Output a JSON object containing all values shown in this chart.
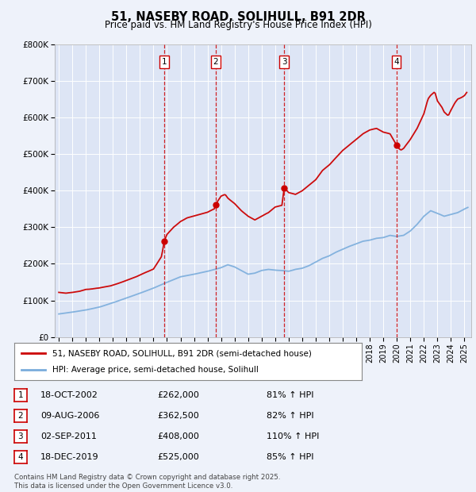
{
  "title": "51, NASEBY ROAD, SOLIHULL, B91 2DR",
  "subtitle": "Price paid vs. HM Land Registry's House Price Index (HPI)",
  "background_color": "#eef2fa",
  "plot_bg_color": "#dde5f5",
  "grid_color": "#ffffff",
  "red_line_color": "#cc0000",
  "blue_line_color": "#7aaddc",
  "ylim": [
    0,
    800000
  ],
  "yticks": [
    0,
    100000,
    200000,
    300000,
    400000,
    500000,
    600000,
    700000,
    800000
  ],
  "ytick_labels": [
    "£0",
    "£100K",
    "£200K",
    "£300K",
    "£400K",
    "£500K",
    "£600K",
    "£700K",
    "£800K"
  ],
  "xlim_start": 1994.7,
  "xlim_end": 2025.5,
  "transactions": [
    {
      "num": 1,
      "year": 2002.8,
      "price": 262000,
      "label": "18-OCT-2002",
      "price_label": "£262,000",
      "pct_label": "81% ↑ HPI"
    },
    {
      "num": 2,
      "year": 2006.6,
      "price": 362500,
      "label": "09-AUG-2006",
      "price_label": "£362,500",
      "pct_label": "82% ↑ HPI"
    },
    {
      "num": 3,
      "year": 2011.67,
      "price": 408000,
      "label": "02-SEP-2011",
      "price_label": "£408,000",
      "pct_label": "110% ↑ HPI"
    },
    {
      "num": 4,
      "year": 2019.96,
      "price": 525000,
      "label": "18-DEC-2019",
      "price_label": "£525,000",
      "pct_label": "85% ↑ HPI"
    }
  ],
  "legend_label_red": "51, NASEBY ROAD, SOLIHULL, B91 2DR (semi-detached house)",
  "legend_label_blue": "HPI: Average price, semi-detached house, Solihull",
  "footnote": "Contains HM Land Registry data © Crown copyright and database right 2025.\nThis data is licensed under the Open Government Licence v3.0."
}
